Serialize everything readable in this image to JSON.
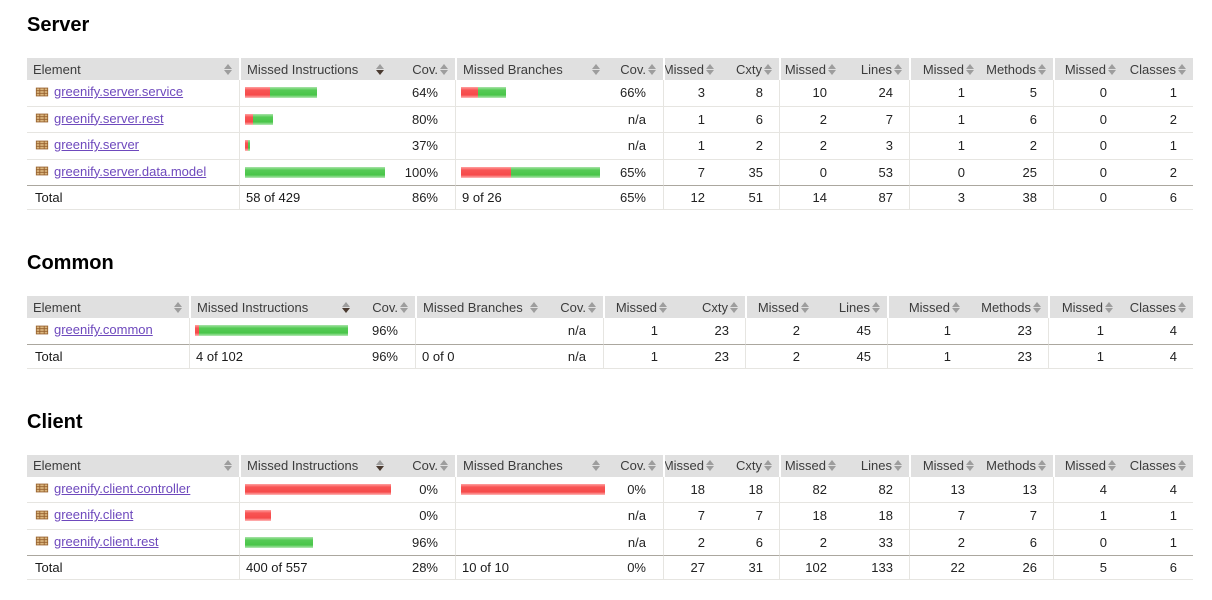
{
  "colors": {
    "bar_red": "#f64a4a",
    "bar_green": "#49c549",
    "link_purple": "#6e49bd",
    "header_bg": "#e0e0e0",
    "icon_brown": "#96602e"
  },
  "headers": {
    "columns": [
      "Element",
      "Missed Instructions",
      "Cov.",
      "Missed Branches",
      "Cov.",
      "Missed",
      "Cxty",
      "Missed",
      "Lines",
      "Missed",
      "Methods",
      "Missed",
      "Classes"
    ],
    "sorted_column": "Missed Instructions",
    "sort_direction": "desc"
  },
  "sections": [
    {
      "title": "Server",
      "rows": [
        {
          "name": "greenify.server.service",
          "ibar_red": 25,
          "ibar_green": 47,
          "icov": "64%",
          "bbar_red": 17,
          "bbar_green": 28,
          "bcov": "66%",
          "m_cxty": "3",
          "cxty": "8",
          "m_lines": "10",
          "lines": "24",
          "m_methods": "1",
          "methods": "5",
          "m_classes": "0",
          "classes": "1"
        },
        {
          "name": "greenify.server.rest",
          "ibar_red": 8,
          "ibar_green": 20,
          "icov": "80%",
          "bbar_red": 0,
          "bbar_green": 0,
          "bcov": "n/a",
          "m_cxty": "1",
          "cxty": "6",
          "m_lines": "2",
          "lines": "7",
          "m_methods": "1",
          "methods": "6",
          "m_classes": "0",
          "classes": "2"
        },
        {
          "name": "greenify.server",
          "ibar_red": 3,
          "ibar_green": 2,
          "icov": "37%",
          "bbar_red": 0,
          "bbar_green": 0,
          "bcov": "n/a",
          "m_cxty": "1",
          "cxty": "2",
          "m_lines": "2",
          "lines": "3",
          "m_methods": "1",
          "methods": "2",
          "m_classes": "0",
          "classes": "1"
        },
        {
          "name": "greenify.server.data.model",
          "ibar_red": 0,
          "ibar_green": 140,
          "icov": "100%",
          "bbar_red": 50,
          "bbar_green": 89,
          "bcov": "65%",
          "m_cxty": "7",
          "cxty": "35",
          "m_lines": "0",
          "lines": "53",
          "m_methods": "0",
          "methods": "25",
          "m_classes": "0",
          "classes": "2"
        }
      ],
      "total": {
        "label": "Total",
        "instructions": "58 of 429",
        "icov": "86%",
        "branches": "9 of 26",
        "bcov": "65%",
        "m_cxty": "12",
        "cxty": "51",
        "m_lines": "14",
        "lines": "87",
        "m_methods": "3",
        "methods": "38",
        "m_classes": "0",
        "classes": "6"
      }
    },
    {
      "title": "Common",
      "rows": [
        {
          "name": "greenify.common",
          "ibar_red": 4,
          "ibar_green": 149,
          "icov": "96%",
          "bbar_red": 0,
          "bbar_green": 0,
          "bcov": "n/a",
          "m_cxty": "1",
          "cxty": "23",
          "m_lines": "2",
          "lines": "45",
          "m_methods": "1",
          "methods": "23",
          "m_classes": "1",
          "classes": "4"
        }
      ],
      "total": {
        "label": "Total",
        "instructions": "4 of 102",
        "icov": "96%",
        "branches": "0 of 0",
        "bcov": "n/a",
        "m_cxty": "1",
        "cxty": "23",
        "m_lines": "2",
        "lines": "45",
        "m_methods": "1",
        "methods": "23",
        "m_classes": "1",
        "classes": "4"
      }
    },
    {
      "title": "Client",
      "rows": [
        {
          "name": "greenify.client.controller",
          "ibar_red": 148,
          "ibar_green": 0,
          "icov": "0%",
          "bbar_red": 144,
          "bbar_green": 0,
          "bcov": "0%",
          "m_cxty": "18",
          "cxty": "18",
          "m_lines": "82",
          "lines": "82",
          "m_methods": "13",
          "methods": "13",
          "m_classes": "4",
          "classes": "4"
        },
        {
          "name": "greenify.client",
          "ibar_red": 26,
          "ibar_green": 0,
          "icov": "0%",
          "bbar_red": 0,
          "bbar_green": 0,
          "bcov": "n/a",
          "m_cxty": "7",
          "cxty": "7",
          "m_lines": "18",
          "lines": "18",
          "m_methods": "7",
          "methods": "7",
          "m_classes": "1",
          "classes": "1"
        },
        {
          "name": "greenify.client.rest",
          "ibar_red": 0,
          "ibar_green": 68,
          "icov": "96%",
          "bbar_red": 0,
          "bbar_green": 0,
          "bcov": "n/a",
          "m_cxty": "2",
          "cxty": "6",
          "m_lines": "2",
          "lines": "33",
          "m_methods": "2",
          "methods": "6",
          "m_classes": "0",
          "classes": "1"
        }
      ],
      "total": {
        "label": "Total",
        "instructions": "400 of 557",
        "icov": "28%",
        "branches": "10 of 10",
        "bcov": "0%",
        "m_cxty": "27",
        "cxty": "31",
        "m_lines": "102",
        "lines": "133",
        "m_methods": "22",
        "methods": "26",
        "m_classes": "5",
        "classes": "6"
      }
    }
  ]
}
